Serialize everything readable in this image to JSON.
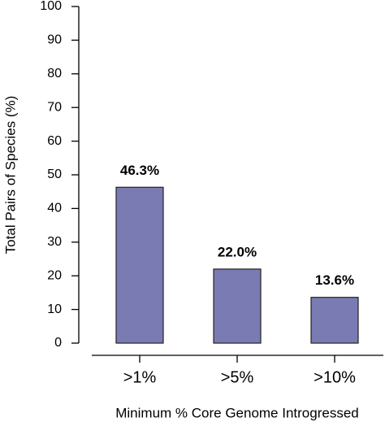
{
  "chart_data": {
    "type": "bar",
    "categories": [
      ">1%",
      ">5%",
      ">10%"
    ],
    "values": [
      46.3,
      22.0,
      13.6
    ],
    "value_labels": [
      "46.3%",
      "22.0%",
      "13.6%"
    ],
    "color": "#7b7bb4",
    "y_label": "Total Pairs of Species (%)",
    "x_label": "Minimum % Core Genome Introgressed",
    "ylim": [
      0,
      100
    ],
    "yticks": [
      0,
      10,
      20,
      30,
      40,
      50,
      60,
      70,
      80,
      90,
      100
    ],
    "grid": false
  }
}
